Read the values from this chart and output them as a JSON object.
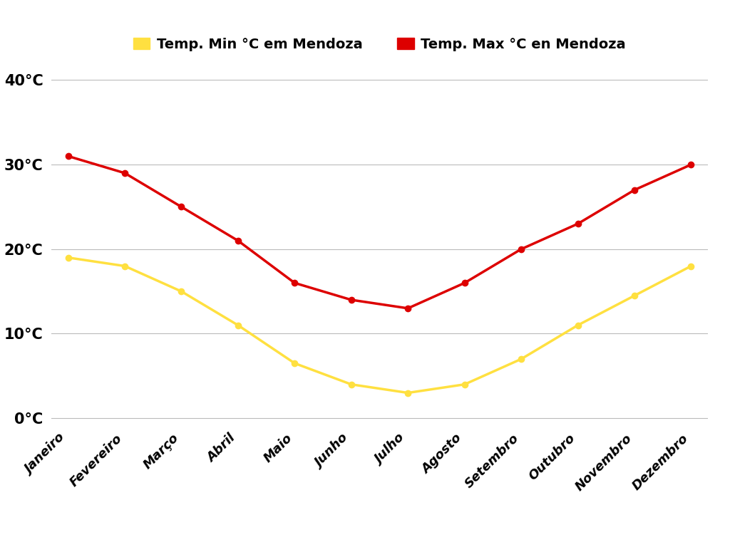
{
  "months": [
    "Janeiro",
    "Fevereiro",
    "Março",
    "Abril",
    "Maio",
    "Junho",
    "Julho",
    "Agosto",
    "Setembro",
    "Outubro",
    "Novembro",
    "Dezembro"
  ],
  "temp_min": [
    19,
    18,
    15,
    11,
    6.5,
    4,
    3,
    4,
    7,
    11,
    14.5,
    18
  ],
  "temp_max": [
    31,
    29,
    25,
    21,
    16,
    14,
    13,
    16,
    20,
    23,
    27,
    30
  ],
  "min_color": "#FFE040",
  "max_color": "#DD0000",
  "min_label": "Temp. Min °C em Mendoza",
  "max_label": "Temp. Max °C en Mendoza",
  "yticks": [
    0,
    10,
    20,
    30,
    40
  ],
  "ytick_labels": [
    "0°C",
    "10°C",
    "20°C",
    "30°C",
    "40°C"
  ],
  "ylim": [
    -1,
    43
  ],
  "background_color": "#ffffff",
  "grid_color": "#bbbbbb",
  "line_width": 2.5,
  "marker_size": 6
}
